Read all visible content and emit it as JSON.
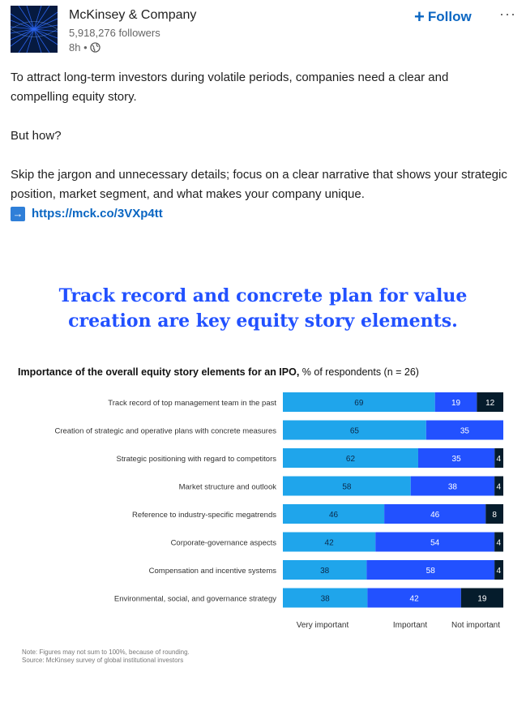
{
  "post": {
    "author": "McKinsey & Company",
    "followers": "5,918,276 followers",
    "time": "8h •",
    "visibility_icon": "globe-icon",
    "follow_label": "Follow",
    "more_label": "···",
    "paragraph1": "To attract long-term investors during volatile periods, companies need a clear and compelling equity story.",
    "paragraph2": "But how?",
    "paragraph3": "Skip the jargon and unnecessary details; focus on a clear narrative that shows your strategic position, market segment, and what makes your company unique.",
    "link_icon": "arrow-right-icon",
    "link_text": "https://mck.co/3VXp4tt"
  },
  "colors": {
    "very_important": "#1fa5eb",
    "important": "#2251ff",
    "not_important": "#051c2c",
    "link": "#0a66c2",
    "title": "#2251ff"
  },
  "infographic": {
    "title_line1": "Track record and concrete plan for value",
    "title_line2": "creation are key equity story elements.",
    "subtitle_bold": "Importance of the overall equity story elements for an IPO,",
    "subtitle_rest": " % of respondents (n = 26)",
    "note": "Note: Figures may not sum to 100%, because of rounding.",
    "source": "Source: McKinsey survey of global institutional investors"
  },
  "chart_data": {
    "type": "bar",
    "orientation": "horizontal",
    "stacked": true,
    "categories": [
      "Track record of top management team in the past",
      "Creation of strategic and operative plans with concrete measures",
      "Strategic positioning with regard to competitors",
      "Market structure and outlook",
      "Reference to industry-specific megatrends",
      "Corporate-governance aspects",
      "Compensation and incentive systems",
      "Environmental, social, and governance strategy"
    ],
    "series": [
      {
        "name": "Very important",
        "values": [
          69,
          65,
          62,
          58,
          46,
          42,
          38,
          38
        ]
      },
      {
        "name": "Important",
        "values": [
          19,
          35,
          35,
          38,
          46,
          54,
          58,
          42
        ]
      },
      {
        "name": "Not important",
        "values": [
          12,
          0,
          4,
          4,
          8,
          4,
          4,
          19
        ]
      }
    ],
    "legend_position": "bottom"
  }
}
